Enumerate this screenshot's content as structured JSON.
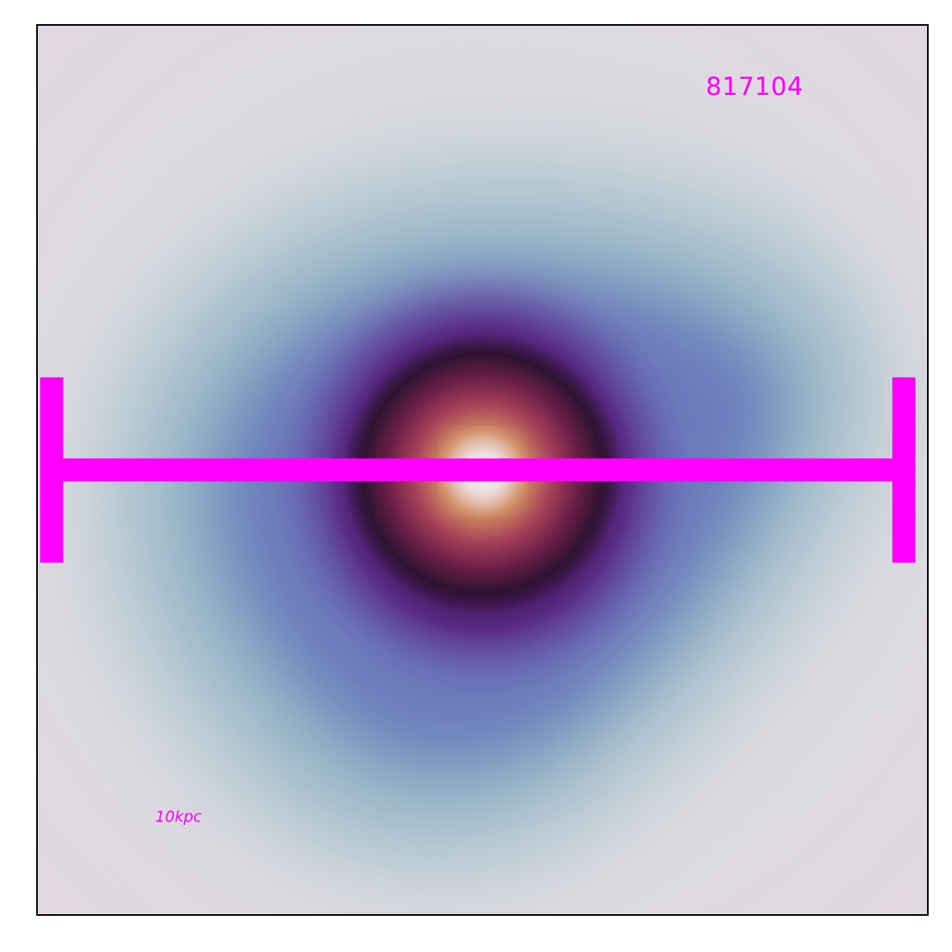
{
  "object_id": "817104",
  "scalebar": {
    "label": "10kpc",
    "color": "#ff00ff"
  },
  "colormap": {
    "background": "#e2d9e2",
    "halo_outer": "#c9d2d8",
    "halo_mid": "#8fb0c4",
    "halo_inner": "#6377bb",
    "ring_purple": "#5c1d85",
    "ring_dark": "#2e1330",
    "core_red": "#9c2d55",
    "core_orange": "#d1875c",
    "core_center": "#eee8f0"
  }
}
